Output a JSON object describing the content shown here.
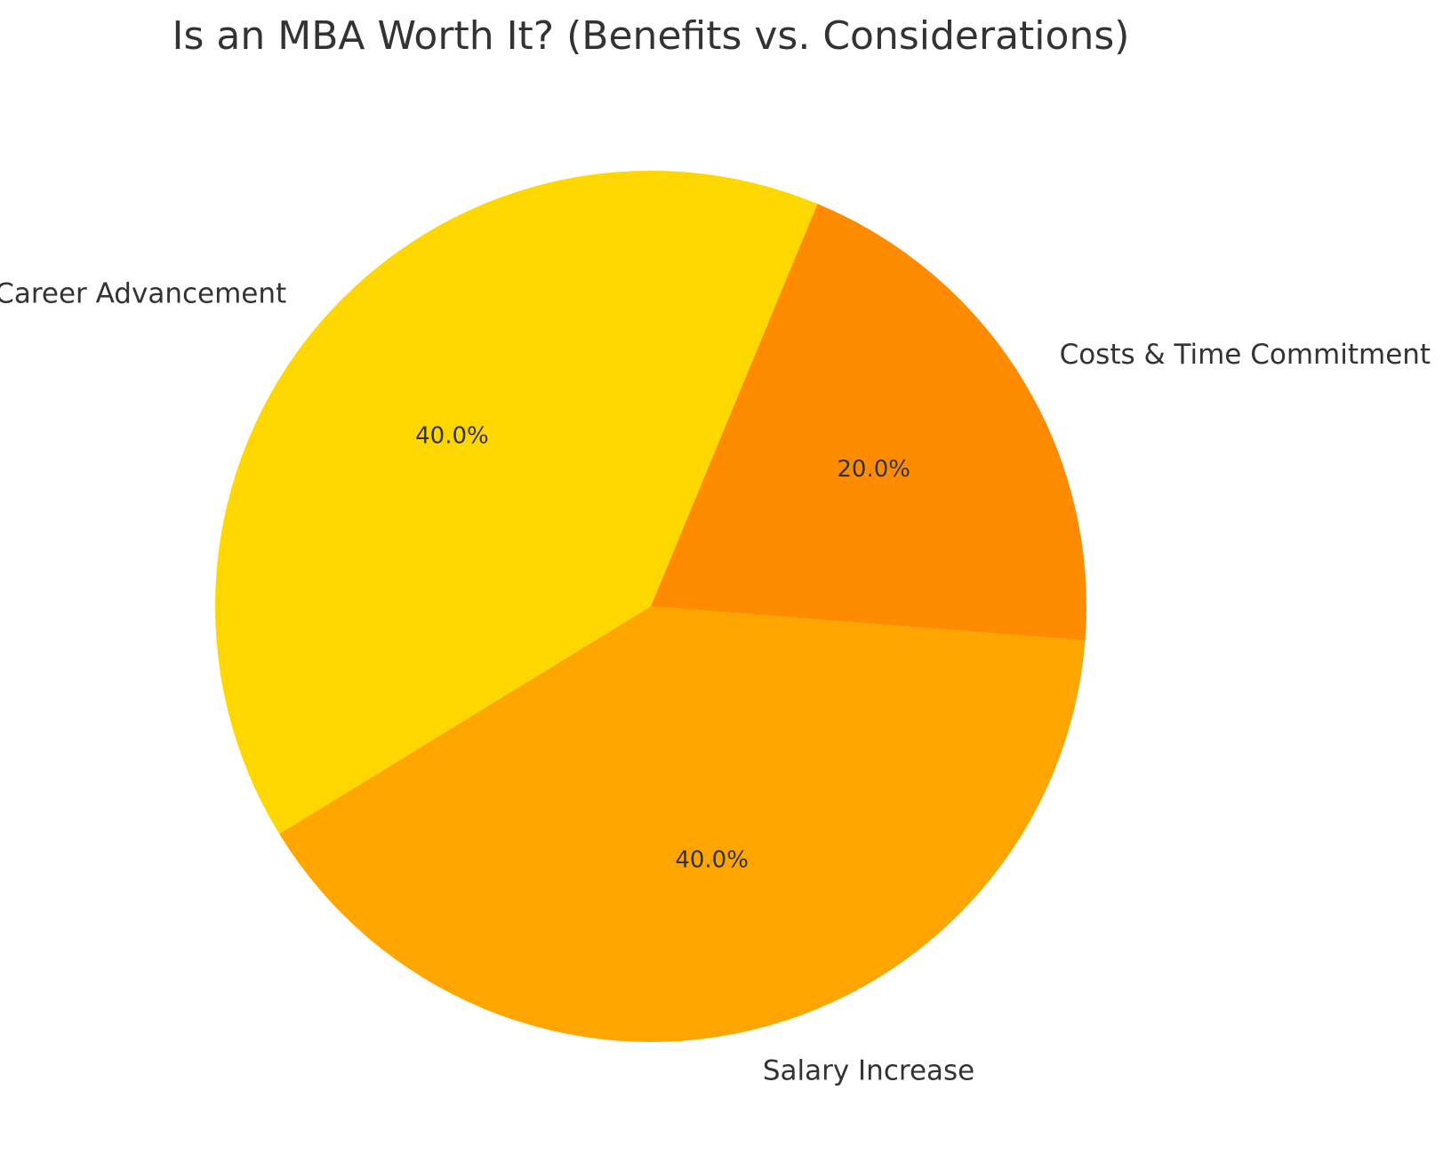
{
  "chart_data": {
    "type": "pie",
    "title": "Is an MBA Worth It? (Benefits vs. Considerations)",
    "labels": [
      "Career Advancement",
      "Salary Increase",
      "Costs & Time Commitment"
    ],
    "values": [
      40,
      40,
      20
    ],
    "percent_labels": [
      "40.0%",
      "40.0%",
      "20.0%"
    ],
    "colors": [
      "#FFD700",
      "#FFA500",
      "#FF8C00"
    ],
    "start_angle_deg": 67.5,
    "direction": "counterclockwise"
  }
}
